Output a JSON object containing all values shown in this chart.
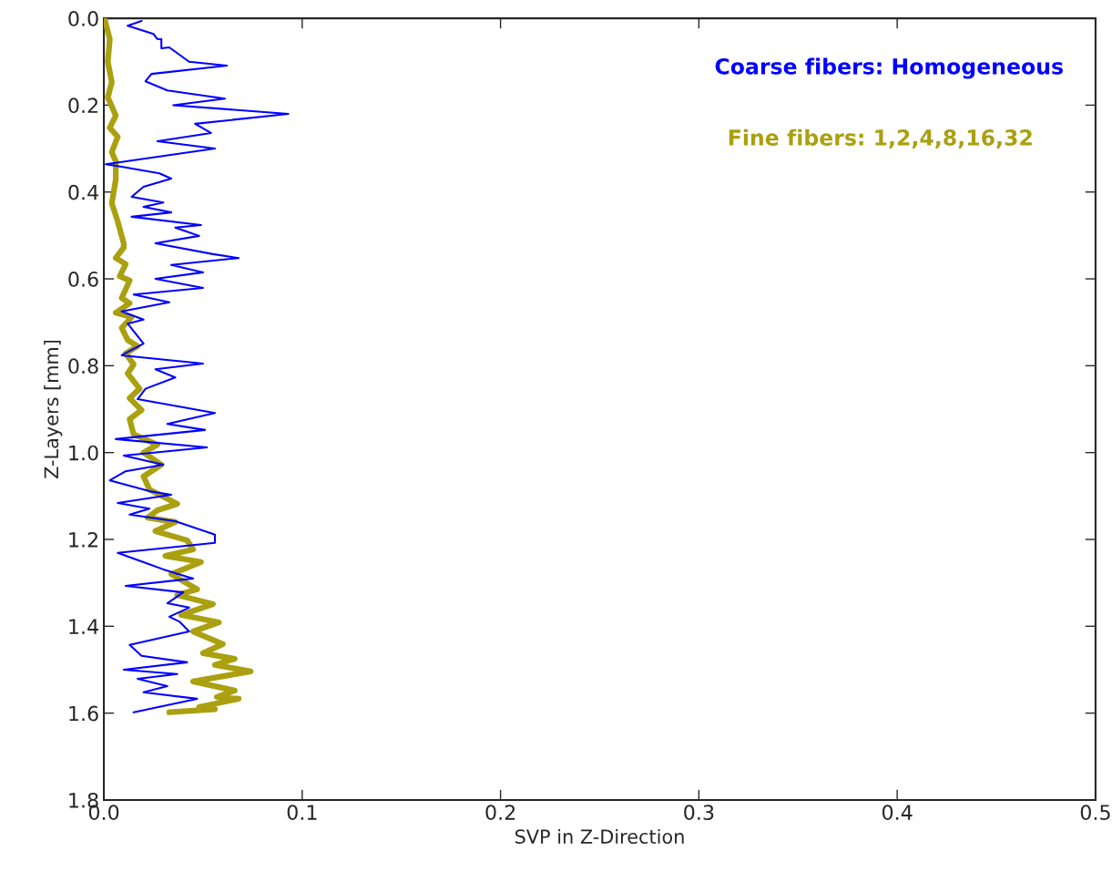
{
  "chart_data": {
    "type": "line",
    "xlabel": "SVP in Z-Direction",
    "ylabel": "Z-Layers [mm]",
    "xlim": [
      0,
      0.5
    ],
    "ylim": [
      1.8,
      0
    ],
    "xticks": [
      {
        "value": 0,
        "label": "0.0"
      },
      0.1,
      0.2,
      0.3,
      0.4,
      0.5
    ],
    "yticks": [
      {
        "value": 0,
        "label": "0.0"
      },
      0.2,
      0.4,
      0.6,
      0.8,
      {
        "value": 1,
        "label": "1.0"
      },
      1.2,
      1.4,
      1.6,
      1.8
    ],
    "grid": false,
    "legend": false,
    "marker": "none",
    "line_style": "solid",
    "series": [
      {
        "name": "Coarse fibers: Homogeneous",
        "color": "#0000ff",
        "x": [
          0.019,
          0.012,
          0.025,
          0.027,
          0.029,
          0.029,
          0.033,
          0.043,
          0.062,
          0.024,
          0.021,
          0.032,
          0.061,
          0.035,
          0.093,
          0.046,
          0.054,
          0.027,
          0.056,
          0.001,
          0.009,
          0.028,
          0.034,
          0.02,
          0.014,
          0.03,
          0.02,
          0.034,
          0.014,
          0.049,
          0.036,
          0.048,
          0.026,
          0.055,
          0.068,
          0.034,
          0.05,
          0.026,
          0.05,
          0.015,
          0.033,
          0.009,
          0.02,
          0.012,
          0.02,
          0.009,
          0.05,
          0.026,
          0.036,
          0.021,
          0.017,
          0.056,
          0.032,
          0.051,
          0.006,
          0.052,
          0.01,
          0.03,
          0.011,
          0.003,
          0.023,
          0.034,
          0.007,
          0.023,
          0.013,
          0.036,
          0.056,
          0.056,
          0.007,
          0.021,
          0.03,
          0.045,
          0.011,
          0.04,
          0.032,
          0.043,
          0.033,
          0.038,
          0.043,
          0.013,
          0.019,
          0.042,
          0.01,
          0.037,
          0.017,
          0.032,
          0.02,
          0.047,
          0.015
        ],
        "values": [
          0.006,
          0.017,
          0.036,
          0.048,
          0.048,
          0.069,
          0.067,
          0.1,
          0.109,
          0.128,
          0.145,
          0.166,
          0.185,
          0.2,
          0.22,
          0.243,
          0.264,
          0.283,
          0.3,
          0.336,
          0.342,
          0.357,
          0.369,
          0.388,
          0.411,
          0.424,
          0.434,
          0.447,
          0.457,
          0.476,
          0.482,
          0.501,
          0.518,
          0.543,
          0.552,
          0.568,
          0.585,
          0.6,
          0.621,
          0.636,
          0.654,
          0.675,
          0.694,
          0.703,
          0.749,
          0.776,
          0.795,
          0.808,
          0.827,
          0.853,
          0.877,
          0.909,
          0.934,
          0.948,
          0.969,
          0.988,
          1.007,
          1.028,
          1.043,
          1.064,
          1.089,
          1.097,
          1.116,
          1.129,
          1.143,
          1.158,
          1.189,
          1.208,
          1.231,
          1.254,
          1.269,
          1.29,
          1.307,
          1.322,
          1.347,
          1.357,
          1.378,
          1.389,
          1.412,
          1.443,
          1.468,
          1.483,
          1.5,
          1.51,
          1.521,
          1.538,
          1.552,
          1.567,
          1.598
        ]
      },
      {
        "name": "Fine fibers: 1,2,4,8,16,32",
        "color": "#aaa010",
        "x": [
          0.0005,
          0.003,
          0.002,
          0.004,
          0.002,
          0.006,
          0.003,
          0.007,
          0.004,
          0.006,
          0.006,
          0.004,
          0.007,
          0.01,
          0.01,
          0.006,
          0.011,
          0.008,
          0.013,
          0.009,
          0.013,
          0.006,
          0.014,
          0.009,
          0.012,
          0.017,
          0.011,
          0.015,
          0.012,
          0.018,
          0.013,
          0.019,
          0.013,
          0.015,
          0.027,
          0.02,
          0.029,
          0.02,
          0.023,
          0.037,
          0.027,
          0.022,
          0.036,
          0.026,
          0.042,
          0.045,
          0.031,
          0.049,
          0.034,
          0.047,
          0.037,
          0.055,
          0.039,
          0.058,
          0.045,
          0.06,
          0.05,
          0.066,
          0.056,
          0.074,
          0.045,
          0.066,
          0.057,
          0.068,
          0.048,
          0.056,
          0.033
        ],
        "values": [
          0.004,
          0.048,
          0.1,
          0.147,
          0.182,
          0.224,
          0.252,
          0.273,
          0.308,
          0.329,
          0.371,
          0.426,
          0.468,
          0.518,
          0.528,
          0.552,
          0.566,
          0.594,
          0.604,
          0.644,
          0.656,
          0.678,
          0.688,
          0.713,
          0.741,
          0.755,
          0.772,
          0.797,
          0.818,
          0.853,
          0.875,
          0.902,
          0.923,
          0.958,
          0.982,
          1.0,
          1.028,
          1.055,
          1.085,
          1.118,
          1.133,
          1.15,
          1.16,
          1.181,
          1.202,
          1.223,
          1.238,
          1.252,
          1.28,
          1.315,
          1.328,
          1.349,
          1.374,
          1.391,
          1.412,
          1.441,
          1.462,
          1.475,
          1.489,
          1.504,
          1.527,
          1.548,
          1.563,
          1.567,
          1.586,
          1.591,
          1.598
        ]
      }
    ]
  }
}
